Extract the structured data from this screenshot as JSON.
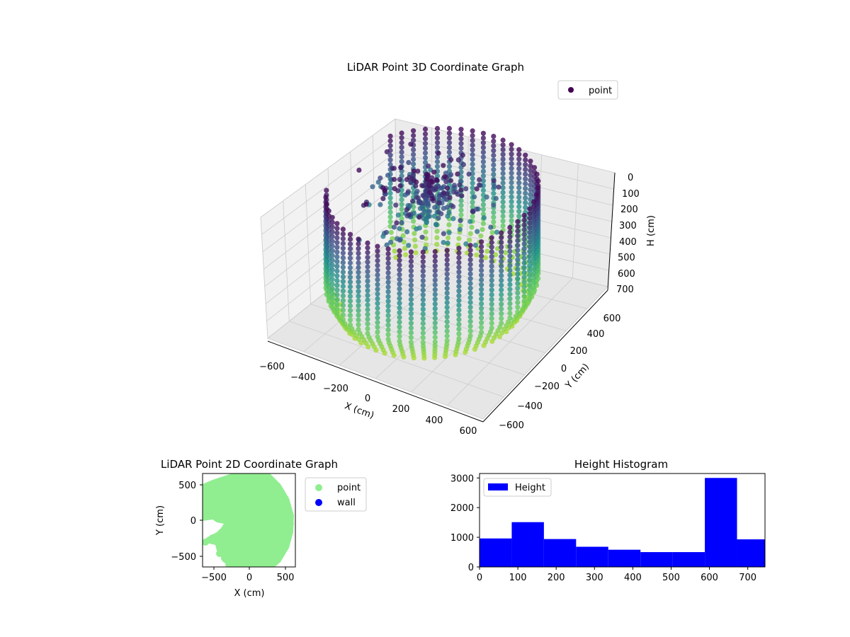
{
  "colors": {
    "viridis_dark": "#440154",
    "viridis_mid": "#21918c",
    "viridis_light": "#7ad151",
    "point_2d": "#90ee90",
    "wall_2d": "#0000ff",
    "histogram": "#0000ff",
    "pane": "#f2f2f2",
    "grid": "#cccccc"
  },
  "chart_data": [
    {
      "type": "scatter3d",
      "title": "LiDAR Point 3D Coordinate Graph",
      "xlabel": "X (cm)",
      "ylabel": "Y (cm)",
      "zlabel": "H (cm)",
      "legend": [
        "point"
      ],
      "legend_position": "top-right",
      "xticks": [
        "−600",
        "−400",
        "−200",
        "0",
        "200",
        "400",
        "600"
      ],
      "yticks": [
        "−600",
        "−400",
        "−200",
        "0",
        "200",
        "400",
        "600"
      ],
      "zticks": [
        "0",
        "100",
        "200",
        "300",
        "400",
        "500",
        "600",
        "700"
      ],
      "xlim": [
        -600,
        600
      ],
      "ylim": [
        -600,
        600
      ],
      "zlim": [
        0,
        700
      ],
      "z_inverted": true,
      "colormap": "viridis",
      "grid": true,
      "description": "Points form a cylindrical wall of radius ~600 cm spanning roughly 160° to -150°, heights 0-700 cm, plus a cluster of scattered points near the center top."
    },
    {
      "type": "scatter",
      "title": "LiDAR Point 2D Coordinate Graph",
      "xlabel": "X (cm)",
      "ylabel": "Y (cm)",
      "xticks": [
        "−500",
        "0",
        "500"
      ],
      "yticks": [
        "500",
        "0",
        "−500"
      ],
      "xlim": [
        -650,
        650
      ],
      "ylim": [
        -650,
        650
      ],
      "legend": [
        "point",
        "wall"
      ],
      "legend_position": "outside-right",
      "series": [
        {
          "name": "point",
          "color": "#90ee90"
        },
        {
          "name": "wall",
          "color": "#0000ff"
        }
      ]
    },
    {
      "type": "bar",
      "title": "Height Histogram",
      "legend": [
        "Height"
      ],
      "legend_position": "upper-left",
      "xticks": [
        "0",
        "100",
        "200",
        "300",
        "400",
        "500",
        "600",
        "700"
      ],
      "yticks": [
        "0",
        "1000",
        "2000",
        "3000"
      ],
      "xlim": [
        0,
        745
      ],
      "ylim": [
        0,
        3150
      ],
      "bins": [
        {
          "x0": 0,
          "x1": 84,
          "value": 960
        },
        {
          "x0": 84,
          "x1": 168,
          "value": 1510
        },
        {
          "x0": 168,
          "x1": 252,
          "value": 940
        },
        {
          "x0": 252,
          "x1": 336,
          "value": 680
        },
        {
          "x0": 336,
          "x1": 420,
          "value": 580
        },
        {
          "x0": 420,
          "x1": 504,
          "value": 500
        },
        {
          "x0": 504,
          "x1": 588,
          "value": 500
        },
        {
          "x0": 588,
          "x1": 672,
          "value": 3000
        },
        {
          "x0": 672,
          "x1": 756,
          "value": 930
        }
      ]
    }
  ]
}
